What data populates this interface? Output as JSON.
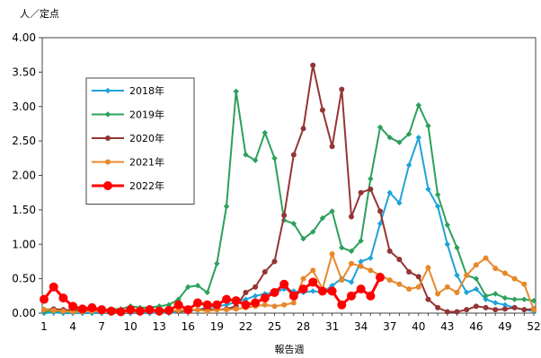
{
  "chart_data": {
    "type": "line",
    "ylabel": "人／定点",
    "xlabel": "報告週",
    "ylim": [
      0,
      4.0
    ],
    "xlim": [
      1,
      52
    ],
    "y_ticks": [
      "0.00",
      "0.50",
      "1.00",
      "1.50",
      "2.00",
      "2.50",
      "3.00",
      "3.50",
      "4.00"
    ],
    "x_ticks": [
      "1",
      "4",
      "7",
      "10",
      "13",
      "16",
      "19",
      "22",
      "25",
      "28",
      "31",
      "34",
      "37",
      "40",
      "43",
      "46",
      "49",
      "52"
    ],
    "grid": false,
    "legend_position": "top-left",
    "series": [
      {
        "name": "2018年",
        "color": "#1fa3d8",
        "marker": "diamond",
        "x": [
          1,
          2,
          3,
          4,
          5,
          6,
          7,
          8,
          9,
          10,
          11,
          12,
          13,
          14,
          15,
          16,
          17,
          18,
          19,
          20,
          21,
          22,
          23,
          24,
          25,
          26,
          27,
          28,
          29,
          30,
          31,
          32,
          33,
          34,
          35,
          36,
          37,
          38,
          39,
          40,
          41,
          42,
          43,
          44,
          45,
          46,
          47,
          48,
          49,
          50,
          51,
          52
        ],
        "values": [
          0,
          0.01,
          0,
          0,
          0,
          0,
          0,
          0,
          0,
          0,
          0,
          0,
          0.01,
          0,
          0.02,
          0.03,
          0.05,
          0.08,
          0.1,
          0.12,
          0.16,
          0.2,
          0.25,
          0.28,
          0.3,
          0.35,
          0.32,
          0.3,
          0.32,
          0.3,
          0.4,
          0.5,
          0.45,
          0.75,
          0.8,
          1.3,
          1.75,
          1.6,
          2.15,
          2.55,
          1.8,
          1.55,
          1.0,
          0.55,
          0.3,
          0.35,
          0.2,
          0.15,
          0.12,
          0.08,
          0.05,
          0.03
        ]
      },
      {
        "name": "2019年",
        "color": "#2ca05a",
        "marker": "diamond",
        "x": [
          1,
          2,
          3,
          4,
          5,
          6,
          7,
          8,
          9,
          10,
          11,
          12,
          13,
          14,
          15,
          16,
          17,
          18,
          19,
          20,
          21,
          22,
          23,
          24,
          25,
          26,
          27,
          28,
          29,
          30,
          31,
          32,
          33,
          34,
          35,
          36,
          37,
          38,
          39,
          40,
          41,
          42,
          43,
          44,
          45,
          46,
          47,
          48,
          49,
          50,
          51,
          52
        ],
        "values": [
          0.02,
          0.03,
          0.02,
          0.03,
          0.04,
          0.05,
          0.05,
          0.06,
          0.06,
          0.1,
          0.08,
          0.08,
          0.1,
          0.12,
          0.2,
          0.38,
          0.4,
          0.3,
          0.72,
          1.55,
          3.22,
          2.3,
          2.22,
          2.62,
          2.25,
          1.35,
          1.3,
          1.08,
          1.18,
          1.38,
          1.48,
          0.95,
          0.9,
          1.05,
          1.95,
          2.7,
          2.55,
          2.48,
          2.6,
          3.02,
          2.72,
          1.72,
          1.28,
          0.95,
          0.55,
          0.5,
          0.25,
          0.28,
          0.22,
          0.2,
          0.2,
          0.18
        ]
      },
      {
        "name": "2020年",
        "color": "#943534",
        "marker": "circle",
        "x": [
          1,
          2,
          3,
          4,
          5,
          6,
          7,
          8,
          9,
          10,
          11,
          12,
          13,
          14,
          15,
          16,
          17,
          18,
          19,
          20,
          21,
          22,
          23,
          24,
          25,
          26,
          27,
          28,
          29,
          30,
          31,
          32,
          33,
          34,
          35,
          36,
          37,
          38,
          39,
          40,
          41,
          42,
          43,
          44,
          45,
          46,
          47,
          48,
          49,
          50,
          51,
          52
        ],
        "values": [
          0.05,
          0.06,
          0.05,
          0.04,
          0.05,
          0.04,
          0.05,
          0.04,
          0.03,
          0.04,
          0.04,
          0.03,
          0.05,
          0.04,
          0.03,
          0.04,
          0.05,
          0.06,
          0.05,
          0.06,
          0.1,
          0.3,
          0.38,
          0.6,
          0.75,
          1.42,
          2.3,
          2.68,
          3.6,
          2.95,
          2.42,
          3.25,
          1.4,
          1.75,
          1.8,
          1.48,
          0.9,
          0.78,
          0.6,
          0.53,
          0.2,
          0.08,
          0.02,
          0.02,
          0.05,
          0.1,
          0.08,
          0.05,
          0.06,
          0.08,
          0.05,
          0.06
        ]
      },
      {
        "name": "2021年",
        "color": "#e8882a",
        "marker": "circle",
        "x": [
          1,
          2,
          3,
          4,
          5,
          6,
          7,
          8,
          9,
          10,
          11,
          12,
          13,
          14,
          15,
          16,
          17,
          18,
          19,
          20,
          21,
          22,
          23,
          24,
          25,
          26,
          27,
          28,
          29,
          30,
          31,
          32,
          33,
          34,
          35,
          36,
          37,
          38,
          39,
          40,
          41,
          42,
          43,
          44,
          45,
          46,
          47,
          48,
          49,
          50,
          51,
          52
        ],
        "values": [
          0.05,
          0.04,
          0.03,
          0.02,
          0.02,
          0.03,
          0.02,
          0.01,
          0.01,
          0.02,
          0.02,
          0.03,
          0.04,
          0.03,
          0.04,
          0.05,
          0.05,
          0.03,
          0.05,
          0.05,
          0.06,
          0.08,
          0.1,
          0.12,
          0.1,
          0.12,
          0.15,
          0.5,
          0.62,
          0.35,
          0.86,
          0.48,
          0.72,
          0.68,
          0.62,
          0.55,
          0.48,
          0.42,
          0.35,
          0.38,
          0.66,
          0.28,
          0.38,
          0.3,
          0.55,
          0.7,
          0.8,
          0.65,
          0.58,
          0.5,
          0.42,
          0.05
        ]
      },
      {
        "name": "2022年",
        "color": "#ff0000",
        "marker": "circle-large",
        "x": [
          1,
          2,
          3,
          4,
          5,
          6,
          7,
          8,
          9,
          10,
          11,
          12,
          13,
          14,
          15,
          16,
          17,
          18,
          19,
          20,
          21,
          22,
          23,
          24,
          25,
          26,
          27,
          28,
          29,
          30,
          31,
          32,
          33,
          34,
          35,
          36
        ],
        "values": [
          0.2,
          0.38,
          0.22,
          0.1,
          0.06,
          0.08,
          0.05,
          0.03,
          0.02,
          0.05,
          0.03,
          0.05,
          0.03,
          0.04,
          0.12,
          0.05,
          0.15,
          0.12,
          0.12,
          0.2,
          0.18,
          0.12,
          0.15,
          0.22,
          0.3,
          0.42,
          0.25,
          0.35,
          0.45,
          0.32,
          0.32,
          0.12,
          0.25,
          0.35,
          0.25,
          0.52
        ]
      }
    ]
  }
}
